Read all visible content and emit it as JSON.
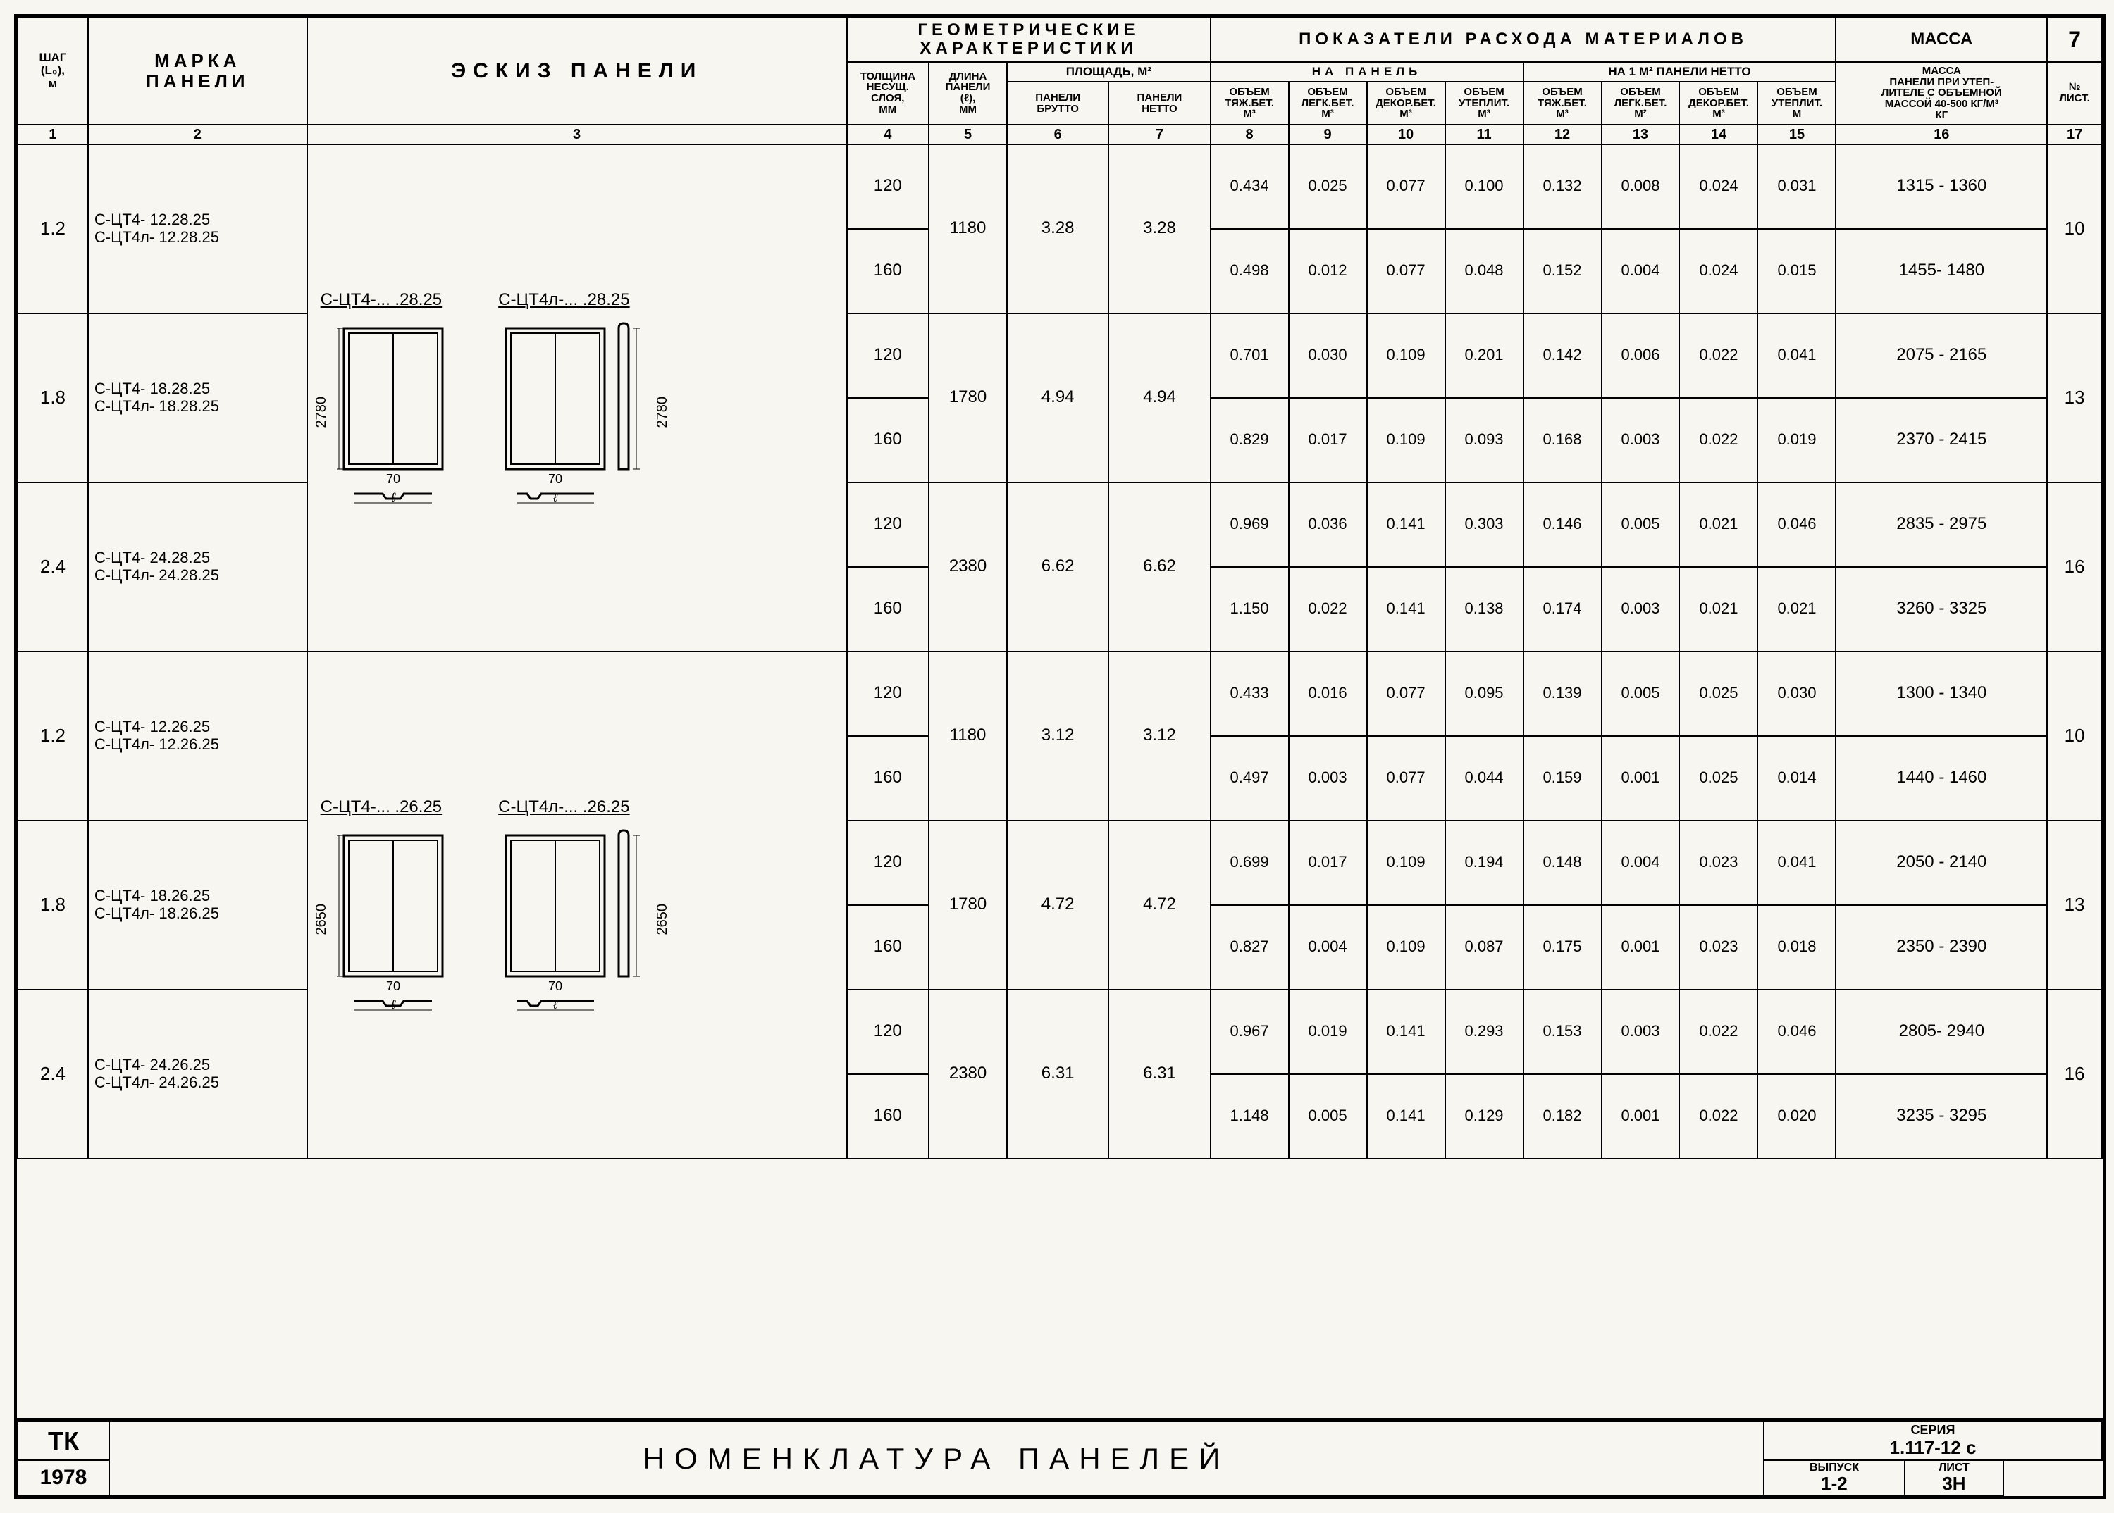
{
  "header": {
    "col1": "ШАГ\n(L₀),\nм",
    "col2": "МАРКА\nПАНЕЛИ",
    "col3": "ЭСКИЗ   ПАНЕЛИ",
    "geom": "ГЕОМЕТРИЧЕСКИЕ\nХАРАКТЕРИСТИКИ",
    "col4": "ТОЛЩИНА\nНЕСУЩ.\nСЛОЯ,\nММ",
    "col5": "ДЛИНА\nПАНЕЛИ\n(ℓ),\nММ",
    "area": "ПЛОЩАДЬ, М²",
    "col6": "ПАНЕЛИ\nБРУТТО",
    "col7": "ПАНЕЛИ\nНЕТТО",
    "pokaz": "ПОКАЗАТЕЛИ  РАСХОДА  МАТЕРИАЛОВ",
    "napanel": "НА ПАНЕЛЬ",
    "na1m2": "НА 1 М² ПАНЕЛИ НЕТТО",
    "col8": "ОБЪЕМ\nТЯЖ.БЕТ.\nМ³",
    "col9": "ОБЪЕМ\nЛЕГК.БЕТ.\nМ³",
    "col10": "ОБЪЕМ\nДЕКОР.БЕТ.\nМ³",
    "col11": "ОБЪЕМ\nУТЕПЛИТ.\nМ³",
    "col12": "ОБЪЕМ\nТЯЖ.БЕТ.\nМ³",
    "col13": "ОБЪЕМ\nЛЕГК.БЕТ.\nМ²",
    "col14": "ОБЪЕМ\nДЕКОР.БЕТ.\nМ³",
    "col15": "ОБЪЕМ\nУТЕПЛИТ.\nМ",
    "col16": "МАССА\nПАНЕЛИ ПРИ УТЕП-\nЛИТЕЛЕ С ОБЪЕМНОЙ\nМАССОЙ 40-500 КГ/М³\nКГ",
    "page7": "7",
    "col17": "№\nЛИСТ."
  },
  "colnums": [
    "1",
    "2",
    "3",
    "4",
    "5",
    "6",
    "7",
    "8",
    "9",
    "10",
    "11",
    "12",
    "13",
    "14",
    "15",
    "16",
    "17"
  ],
  "groups": [
    {
      "sketch_labels": [
        "С-ЦТ4-... .28.25",
        "С-ЦТ4л-... .28.25"
      ],
      "sketch_height": "2780",
      "sketch_btm": "70",
      "rows": [
        {
          "shag": "1.2",
          "marks": [
            "С-ЦТ4- 12.28.25",
            "С-ЦТ4л- 12.28.25"
          ],
          "len": "1180",
          "br": "3.28",
          "nt": "3.28",
          "sheet": "10",
          "sub": [
            {
              "t": "120",
              "v": [
                "0.434",
                "0.025",
                "0.077",
                "0.100",
                "0.132",
                "0.008",
                "0.024",
                "0.031"
              ],
              "mass": "1315 - 1360"
            },
            {
              "t": "160",
              "v": [
                "0.498",
                "0.012",
                "0.077",
                "0.048",
                "0.152",
                "0.004",
                "0.024",
                "0.015"
              ],
              "mass": "1455- 1480"
            }
          ]
        },
        {
          "shag": "1.8",
          "marks": [
            "С-ЦТ4- 18.28.25",
            "С-ЦТ4л- 18.28.25"
          ],
          "len": "1780",
          "br": "4.94",
          "nt": "4.94",
          "sheet": "13",
          "sub": [
            {
              "t": "120",
              "v": [
                "0.701",
                "0.030",
                "0.109",
                "0.201",
                "0.142",
                "0.006",
                "0.022",
                "0.041"
              ],
              "mass": "2075 - 2165"
            },
            {
              "t": "160",
              "v": [
                "0.829",
                "0.017",
                "0.109",
                "0.093",
                "0.168",
                "0.003",
                "0.022",
                "0.019"
              ],
              "mass": "2370 - 2415"
            }
          ]
        },
        {
          "shag": "2.4",
          "marks": [
            "С-ЦТ4- 24.28.25",
            "С-ЦТ4л- 24.28.25"
          ],
          "len": "2380",
          "br": "6.62",
          "nt": "6.62",
          "sheet": "16",
          "sub": [
            {
              "t": "120",
              "v": [
                "0.969",
                "0.036",
                "0.141",
                "0.303",
                "0.146",
                "0.005",
                "0.021",
                "0.046"
              ],
              "mass": "2835 - 2975"
            },
            {
              "t": "160",
              "v": [
                "1.150",
                "0.022",
                "0.141",
                "0.138",
                "0.174",
                "0.003",
                "0.021",
                "0.021"
              ],
              "mass": "3260 - 3325"
            }
          ]
        }
      ]
    },
    {
      "sketch_labels": [
        "С-ЦТ4-... .26.25",
        "С-ЦТ4л-... .26.25"
      ],
      "sketch_height": "2650",
      "sketch_btm": "70",
      "rows": [
        {
          "shag": "1.2",
          "marks": [
            "С-ЦТ4- 12.26.25",
            "С-ЦТ4л- 12.26.25"
          ],
          "len": "1180",
          "br": "3.12",
          "nt": "3.12",
          "sheet": "10",
          "sub": [
            {
              "t": "120",
              "v": [
                "0.433",
                "0.016",
                "0.077",
                "0.095",
                "0.139",
                "0.005",
                "0.025",
                "0.030"
              ],
              "mass": "1300 - 1340"
            },
            {
              "t": "160",
              "v": [
                "0.497",
                "0.003",
                "0.077",
                "0.044",
                "0.159",
                "0.001",
                "0.025",
                "0.014"
              ],
              "mass": "1440 - 1460"
            }
          ]
        },
        {
          "shag": "1.8",
          "marks": [
            "С-ЦТ4- 18.26.25",
            "С-ЦТ4л- 18.26.25"
          ],
          "len": "1780",
          "br": "4.72",
          "nt": "4.72",
          "sheet": "13",
          "sub": [
            {
              "t": "120",
              "v": [
                "0.699",
                "0.017",
                "0.109",
                "0.194",
                "0.148",
                "0.004",
                "0.023",
                "0.041"
              ],
              "mass": "2050 - 2140"
            },
            {
              "t": "160",
              "v": [
                "0.827",
                "0.004",
                "0.109",
                "0.087",
                "0.175",
                "0.001",
                "0.023",
                "0.018"
              ],
              "mass": "2350 - 2390"
            }
          ]
        },
        {
          "shag": "2.4",
          "marks": [
            "С-ЦТ4- 24.26.25",
            "С-ЦТ4л- 24.26.25"
          ],
          "len": "2380",
          "br": "6.31",
          "nt": "6.31",
          "sheet": "16",
          "sub": [
            {
              "t": "120",
              "v": [
                "0.967",
                "0.019",
                "0.141",
                "0.293",
                "0.153",
                "0.003",
                "0.022",
                "0.046"
              ],
              "mass": "2805- 2940"
            },
            {
              "t": "160",
              "v": [
                "1.148",
                "0.005",
                "0.141",
                "0.129",
                "0.182",
                "0.001",
                "0.022",
                "0.020"
              ],
              "mass": "3235 - 3295"
            }
          ]
        }
      ]
    }
  ],
  "title": "НОМЕНКЛАТУРА   ПАНЕЛЕЙ",
  "footer": {
    "tk": "ТК",
    "year": "1978",
    "series_lbl": "СЕРИЯ",
    "series": "1.117-12 с",
    "vypusk_lbl": "ВЫПУСК",
    "vypusk": "1-2",
    "list_lbl": "ЛИСТ",
    "list": "3Н"
  }
}
